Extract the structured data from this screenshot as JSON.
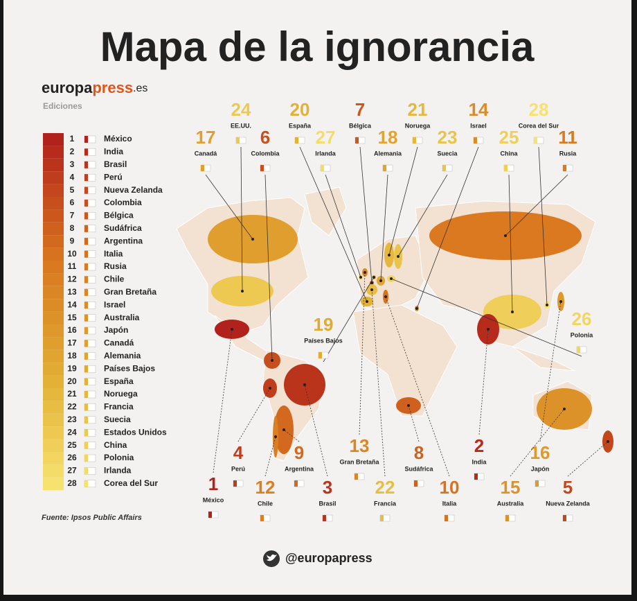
{
  "header": {
    "title": "Mapa de la ignorancia",
    "brand": [
      "europa",
      "press",
      ".es"
    ],
    "edition": "Ediciones"
  },
  "legend": [
    {
      "rank": 1,
      "country": "México"
    },
    {
      "rank": 2,
      "country": "India"
    },
    {
      "rank": 3,
      "country": "Brasil"
    },
    {
      "rank": 4,
      "country": "Perú"
    },
    {
      "rank": 5,
      "country": "Nueva Zelanda"
    },
    {
      "rank": 6,
      "country": "Colombia"
    },
    {
      "rank": 7,
      "country": "Bélgica"
    },
    {
      "rank": 8,
      "country": "Sudáfrica"
    },
    {
      "rank": 9,
      "country": "Argentina"
    },
    {
      "rank": 10,
      "country": "Italia"
    },
    {
      "rank": 11,
      "country": "Rusia"
    },
    {
      "rank": 12,
      "country": "Chile"
    },
    {
      "rank": 13,
      "country": "Gran Bretaña"
    },
    {
      "rank": 14,
      "country": "Israel"
    },
    {
      "rank": 15,
      "country": "Australia"
    },
    {
      "rank": 16,
      "country": "Japón"
    },
    {
      "rank": 17,
      "country": "Canadá"
    },
    {
      "rank": 18,
      "country": "Alemania"
    },
    {
      "rank": 19,
      "country": "Países Bajos"
    },
    {
      "rank": 20,
      "country": "España"
    },
    {
      "rank": 21,
      "country": "Noruega"
    },
    {
      "rank": 22,
      "country": "Francia"
    },
    {
      "rank": 23,
      "country": "Suecia"
    },
    {
      "rank": 24,
      "country": "Estados Unidos"
    },
    {
      "rank": 25,
      "country": "China"
    },
    {
      "rank": 26,
      "country": "Polonia"
    },
    {
      "rank": 27,
      "country": "Irlanda"
    },
    {
      "rank": 28,
      "country": "Corea del Sur"
    }
  ],
  "map_labels": [
    {
      "rank": 24,
      "name": "EE.UU."
    },
    {
      "rank": 20,
      "name": "España"
    },
    {
      "rank": 7,
      "name": "Bélgica"
    },
    {
      "rank": 21,
      "name": "Noruega"
    },
    {
      "rank": 14,
      "name": "Israel"
    },
    {
      "rank": 28,
      "name": "Corea del Sur"
    },
    {
      "rank": 17,
      "name": "Canadá"
    },
    {
      "rank": 6,
      "name": "Colombia"
    },
    {
      "rank": 27,
      "name": "Irlanda"
    },
    {
      "rank": 18,
      "name": "Alemania"
    },
    {
      "rank": 23,
      "name": "Suecia"
    },
    {
      "rank": 25,
      "name": "China"
    },
    {
      "rank": 11,
      "name": "Rusia"
    },
    {
      "rank": 19,
      "name": "Países Bajos"
    },
    {
      "rank": 26,
      "name": "Polonia"
    },
    {
      "rank": 4,
      "name": "Perú"
    },
    {
      "rank": 9,
      "name": "Argentina"
    },
    {
      "rank": 13,
      "name": "Gran Bretaña"
    },
    {
      "rank": 8,
      "name": "Sudáfrica"
    },
    {
      "rank": 2,
      "name": "India"
    },
    {
      "rank": 16,
      "name": "Japón"
    },
    {
      "rank": 1,
      "name": "México"
    },
    {
      "rank": 12,
      "name": "Chile"
    },
    {
      "rank": 3,
      "name": "Brasil"
    },
    {
      "rank": 22,
      "name": "Francia"
    },
    {
      "rank": 10,
      "name": "Italia"
    },
    {
      "rank": 15,
      "name": "Australia"
    },
    {
      "rank": 5,
      "name": "Nueva Zelanda"
    }
  ],
  "footer": {
    "source": "Fuente: Ipsos Public Affairs",
    "handle": "@europapress"
  }
}
